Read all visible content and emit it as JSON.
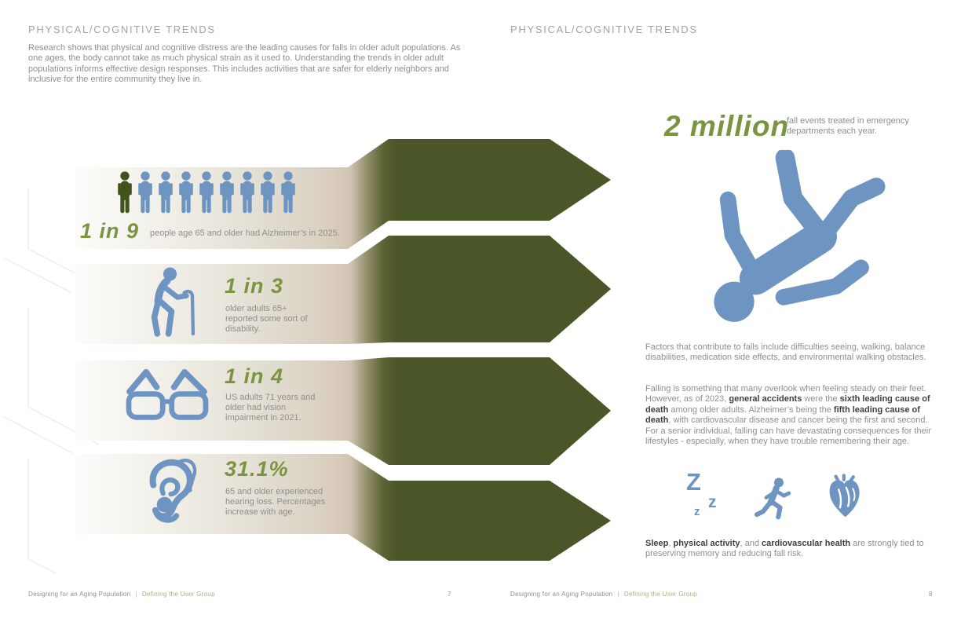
{
  "colors": {
    "accent_green": "#7a9440",
    "dark_green": "#4a5628",
    "icon_blue": "#6e94c2",
    "person_green": "#42521d",
    "gray_text": "#8e8e8e",
    "title_gray": "#9fa3a8",
    "footer_olive": "#b2ab7e",
    "bold_text": "#3f3f3f"
  },
  "left_page": {
    "title": "PHYSICAL/COGNITIVE TRENDS",
    "intro": "Research shows that physical and cognitive distress are the leading causes for falls in older adult populations. As one ages, the body cannot take as much physical strain as it used to. Understanding the trends in older adult populations informs effective design responses. This includes activities that are safer for elderly neighbors and inclusive for the entire community they live in.",
    "stats": [
      {
        "icon": "person-row-icon",
        "people_total": 9,
        "people_highlighted": 1,
        "value": "1 in 9",
        "desc": "people age 65 and older had Alzheimer’s in 2025."
      },
      {
        "icon": "elder-cane-icon",
        "value": "1 in 3",
        "desc": "older adults 65+ reported some sort of disability."
      },
      {
        "icon": "glasses-icon",
        "value": "1 in 4",
        "desc": "US adults 71 years and older had vision impairment in 2021."
      },
      {
        "icon": "ear-hearing-aid-icon",
        "value": "31.1%",
        "desc": "65 and older experienced hearing loss. Percentages increase with age."
      }
    ],
    "footer": {
      "doc": "Designing for an Aging Population",
      "sep": "|",
      "section": "Defining the User Group",
      "page": "7"
    }
  },
  "right_page": {
    "title": "PHYSICAL/COGNITIVE TRENDS",
    "big_stat": {
      "value": "2 million",
      "desc": "fall events treated in emergency departments each year."
    },
    "fall_icon": "falling-person-icon",
    "para_factors": "Factors that contribute to falls include difficulties seeing, walking, balance disabilities, medication side effects, and environmental walking obstacles.",
    "para_falling": [
      {
        "text": "Falling is something that many overlook when feeling steady on their feet. However, as of 2023, ",
        "bold": false
      },
      {
        "text": "general accidents",
        "bold": true
      },
      {
        "text": " were the ",
        "bold": false
      },
      {
        "text": "sixth leading cause of death",
        "bold": true
      },
      {
        "text": " among older adults. Alzheimer’s being the ",
        "bold": false
      },
      {
        "text": "fifth leading cause of death",
        "bold": true
      },
      {
        "text": ", with cardiovascular disease and cancer being the first and second. For a senior individual, falling can have devastating consequences for their lifestyles - especially, when they have trouble remembering their age.",
        "bold": false
      }
    ],
    "habit_icons": [
      {
        "name": "sleep-zzz-icon",
        "glyphs": [
          "Z",
          "z",
          "z"
        ]
      },
      {
        "name": "running-person-icon"
      },
      {
        "name": "heart-icon"
      }
    ],
    "sleep_note": [
      {
        "text": "Sleep",
        "bold": true
      },
      {
        "text": ", ",
        "bold": false
      },
      {
        "text": "physical activity",
        "bold": true
      },
      {
        "text": ", and ",
        "bold": false
      },
      {
        "text": "cardiovascular health",
        "bold": true
      },
      {
        "text": " are strongly tied to preserving memory and reducing fall risk.",
        "bold": false
      }
    ],
    "footer": {
      "doc": "Designing for an Aging Population",
      "sep": "|",
      "section": "Defining the User Group",
      "page": "8"
    }
  }
}
